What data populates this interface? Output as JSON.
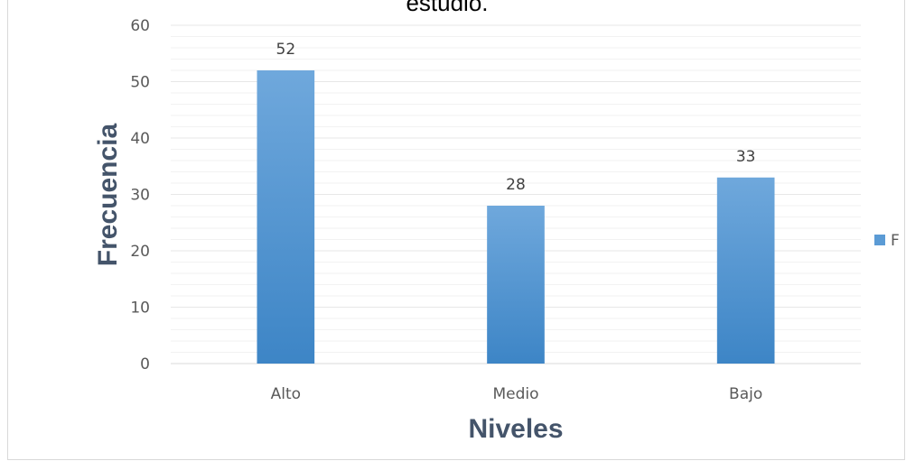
{
  "chart_data": {
    "type": "bar",
    "title": "estudio.",
    "categories": [
      "Alto",
      "Medio",
      "Bajo"
    ],
    "series": [
      {
        "name": "F",
        "values": [
          52,
          28,
          33
        ]
      }
    ],
    "data_labels": [
      "52",
      "28",
      "33"
    ],
    "xlabel": "Niveles",
    "ylabel": "Frecuencia",
    "ylim": [
      0,
      60
    ],
    "yticks": [
      0,
      10,
      20,
      30,
      40,
      50,
      60
    ],
    "ytick_labels": [
      "0",
      "10",
      "20",
      "30",
      "40",
      "50",
      "60"
    ],
    "grid": true,
    "minor_grid": true,
    "legend_position": "right",
    "bar_color_top": "#6fa8dc",
    "bar_color_bottom": "#3d85c6",
    "legend_color": "#5b9bd5"
  }
}
